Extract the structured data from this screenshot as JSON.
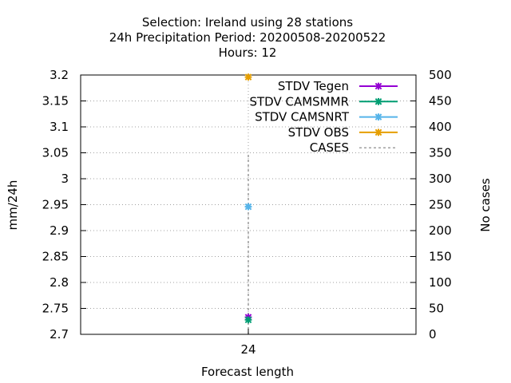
{
  "chart_data": {
    "type": "scatter",
    "title_lines": [
      "Selection: Ireland using    28 stations",
      "24h Precipitation   Period: 20200508-20200522",
      "Hours:  12"
    ],
    "xlabel": "Forecast length",
    "ylabel": "mm/24h",
    "y2label": "No cases",
    "x_ticks": [
      "24"
    ],
    "y_ticks": [
      "2.7",
      "2.75",
      "2.8",
      "2.85",
      "2.9",
      "2.95",
      "3",
      "3.05",
      "3.1",
      "3.15",
      "3.2"
    ],
    "y2_ticks": [
      "0",
      "50",
      "100",
      "150",
      "200",
      "250",
      "300",
      "350",
      "400",
      "450",
      "500"
    ],
    "ylim": [
      2.7,
      3.2
    ],
    "y2lim": [
      0,
      500
    ],
    "grid": true,
    "legend_position": "top-right",
    "series": [
      {
        "name": "STDV Tegen",
        "color": "#9400d3",
        "x": [
          24
        ],
        "y": [
          2.733
        ],
        "style": "points"
      },
      {
        "name": "STDV CAMSMMR",
        "color": "#009e73",
        "x": [
          24
        ],
        "y": [
          2.728
        ],
        "style": "points"
      },
      {
        "name": "STDV CAMSNRT",
        "color": "#56b4e9",
        "x": [
          24
        ],
        "y": [
          2.946
        ],
        "style": "points"
      },
      {
        "name": "STDV OBS",
        "color": "#e69f00",
        "x": [
          24
        ],
        "y": [
          3.196
        ],
        "style": "points"
      },
      {
        "name": "CASES",
        "color": "#808080",
        "x": [
          24
        ],
        "y2": [
          350
        ],
        "style": "dashed-impulse"
      }
    ]
  }
}
